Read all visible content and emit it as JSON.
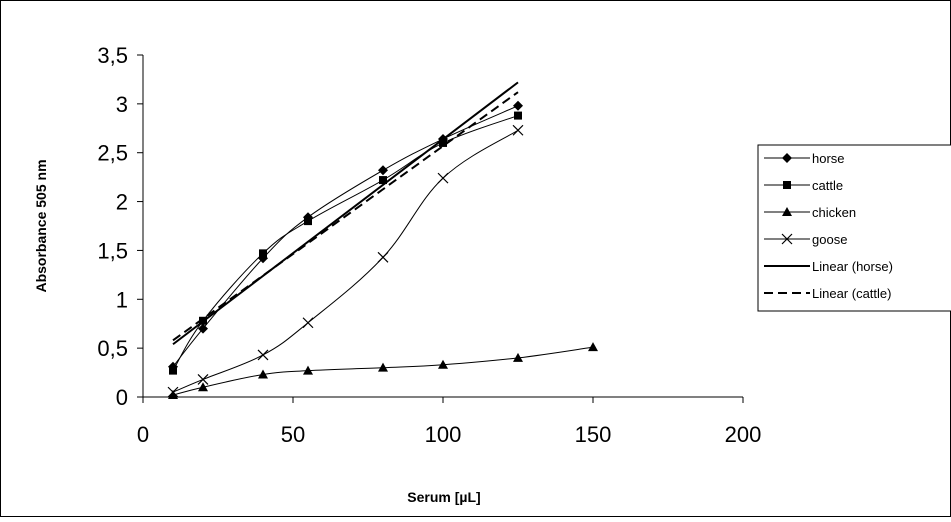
{
  "chart_data": {
    "type": "scatter",
    "xlabel": "Serum [µL]",
    "ylabel": "Absorbance 505 nm",
    "xlim": [
      0,
      200
    ],
    "ylim": [
      0,
      3.5
    ],
    "x_ticks": [
      "0",
      "50",
      "100",
      "150",
      "200"
    ],
    "y_ticks": [
      "0",
      "0,5",
      "1",
      "1,5",
      "2",
      "2,5",
      "3",
      "3,5"
    ],
    "grid": false,
    "legend_position": "right",
    "series": [
      {
        "name": "horse",
        "marker": "diamond",
        "line": "smooth",
        "color": "#000000",
        "x": [
          10,
          20,
          40,
          55,
          80,
          100,
          125
        ],
        "y": [
          0.31,
          0.7,
          1.42,
          1.84,
          2.32,
          2.64,
          2.98
        ]
      },
      {
        "name": "cattle",
        "marker": "square",
        "line": "smooth",
        "color": "#000000",
        "x": [
          10,
          20,
          40,
          55,
          80,
          100,
          125
        ],
        "y": [
          0.27,
          0.78,
          1.47,
          1.8,
          2.22,
          2.6,
          2.88
        ]
      },
      {
        "name": "chicken",
        "marker": "triangle",
        "line": "smooth",
        "color": "#000000",
        "x": [
          10,
          20,
          40,
          55,
          80,
          100,
          125,
          150
        ],
        "y": [
          0.02,
          0.1,
          0.23,
          0.27,
          0.3,
          0.33,
          0.4,
          0.51
        ]
      },
      {
        "name": "goose",
        "marker": "x",
        "line": "smooth",
        "color": "#000000",
        "x": [
          10,
          20,
          40,
          55,
          80,
          100,
          125
        ],
        "y": [
          0.05,
          0.18,
          0.43,
          0.76,
          1.43,
          2.24,
          2.73
        ]
      },
      {
        "name": "Linear (horse)",
        "marker": "none",
        "line": "solid",
        "color": "#000000",
        "x": [
          10,
          125
        ],
        "y": [
          0.54,
          3.22
        ]
      },
      {
        "name": "Linear (cattle)",
        "marker": "none",
        "line": "dashed",
        "color": "#000000",
        "x": [
          10,
          125
        ],
        "y": [
          0.58,
          3.12
        ]
      }
    ]
  }
}
